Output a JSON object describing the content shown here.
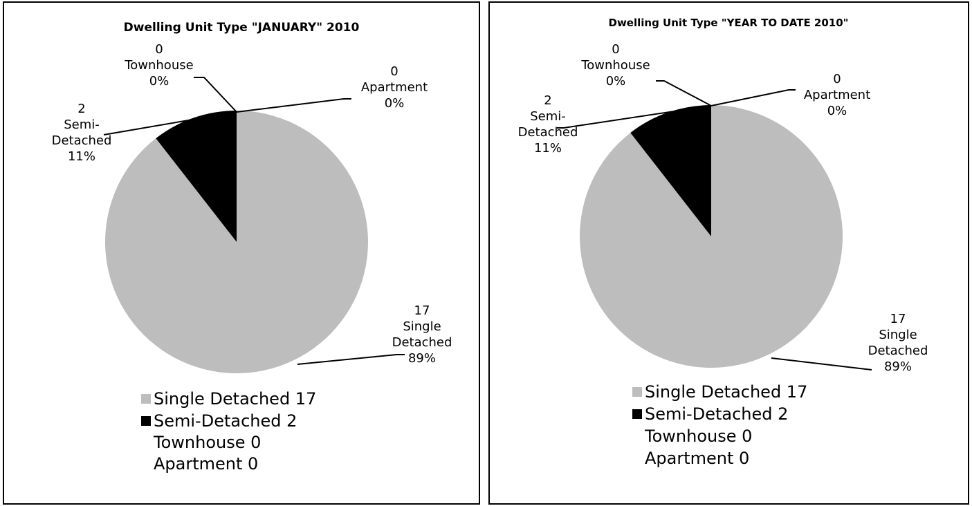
{
  "chart_data": [
    {
      "type": "pie",
      "title": "Dwelling Unit Type \"JANUARY\"  2010",
      "categories": [
        "Single Detached",
        "Semi-Detached",
        "Townhouse",
        "Apartment"
      ],
      "values": [
        17,
        2,
        0,
        0
      ],
      "percentages": [
        89,
        11,
        0,
        0
      ],
      "percent_labels": [
        "89%",
        "11%",
        "0%",
        "0%"
      ],
      "legend_labels": [
        "Single Detached 17",
        "Semi-Detached 2",
        "Townhouse 0",
        "Apartment 0"
      ],
      "colors": [
        "#bdbdbd",
        "#000000",
        "#ffffff",
        "#ffffff"
      ]
    },
    {
      "type": "pie",
      "title": "Dwelling Unit Type  \"YEAR TO DATE 2010\"",
      "categories": [
        "Single Detached",
        "Semi-Detached",
        "Townhouse",
        "Apartment"
      ],
      "values": [
        17,
        2,
        0,
        0
      ],
      "percentages": [
        89,
        11,
        0,
        0
      ],
      "percent_labels": [
        "89%",
        "11%",
        "0%",
        "0%"
      ],
      "legend_labels": [
        "Single Detached 17",
        "Semi-Detached 2",
        "Townhouse 0",
        "Apartment 0"
      ],
      "colors": [
        "#bdbdbd",
        "#000000",
        "#ffffff",
        "#ffffff"
      ]
    }
  ]
}
